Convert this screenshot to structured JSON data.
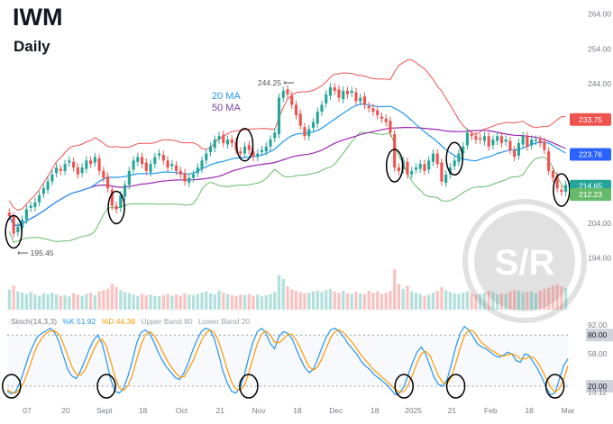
{
  "header": {
    "ticker": "IWM",
    "interval": "Daily"
  },
  "legend": {
    "ma20_label": "20 MA",
    "ma50_label": "50 MA"
  },
  "stoch_header": {
    "name": "Stoch(14,3,3)",
    "k_label": "%K 51.92",
    "d_label": "%D 44.38",
    "upper_label": "Upper Band 80",
    "lower_label": "Lower Band 20"
  },
  "watermark": {
    "text": "S/R"
  },
  "colors": {
    "up": "#26a69a",
    "down": "#ef5350",
    "ma20": "#2196f3",
    "ma50": "#9c27b0",
    "upper_band": "#ef5350",
    "lower_band": "#66bb6a",
    "k": "#2196f3",
    "d": "#ff9800"
  },
  "chart_data": [
    {
      "type": "candlestick",
      "title": "IWM",
      "subtitle": "Daily",
      "price_ticks": [
        264.0,
        254.0,
        244.0,
        234.0,
        224.0,
        214.0,
        204.0,
        194.0
      ],
      "ylim": [
        189,
        266
      ],
      "x_ticks": [
        "07",
        "20",
        "Sept",
        "18",
        "Oct",
        "21",
        "Nov",
        "18",
        "Dec",
        "18",
        "2025",
        "21",
        "Feb",
        "18",
        "Mar"
      ],
      "annotations": [
        {
          "text": "244.25",
          "value": 244.25
        },
        {
          "text": "195.45",
          "value": 195.45
        }
      ],
      "price_badges": [
        {
          "label": "233.75",
          "color": "#ef5350"
        },
        {
          "label": "223.76",
          "color": "#2962ff"
        },
        {
          "label": "214.65",
          "color": "#26a69a"
        },
        {
          "label": "212.23",
          "color": "#66bb6a"
        }
      ],
      "close": [
        206,
        201,
        203,
        205,
        208,
        209,
        210,
        212,
        214,
        216,
        218,
        220,
        219,
        221,
        222,
        220,
        218,
        220,
        222,
        221,
        223,
        219,
        217,
        214,
        209,
        208,
        212,
        215,
        219,
        222,
        223,
        221,
        219,
        221,
        223,
        224,
        222,
        220,
        221,
        219,
        218,
        216,
        217,
        218,
        220,
        222,
        224,
        226,
        228,
        229,
        227,
        228,
        227,
        225,
        224,
        226,
        225,
        223,
        224,
        225,
        226,
        228,
        230,
        240,
        242,
        241,
        238,
        235,
        232,
        229,
        231,
        233,
        236,
        238,
        241,
        243,
        242,
        240,
        242,
        241,
        242,
        239,
        240,
        238,
        237,
        236,
        235,
        234,
        233,
        230,
        220,
        219,
        222,
        218,
        219,
        220,
        221,
        219,
        222,
        224,
        221,
        216,
        218,
        220,
        222,
        224,
        226,
        230,
        229,
        228,
        228,
        229,
        226,
        228,
        229,
        227,
        228,
        225,
        223,
        227,
        229,
        226,
        228,
        228,
        227,
        225,
        219,
        217,
        214,
        213,
        215
      ],
      "indicators": {
        "ma20_last": 223.76,
        "upper_band_last": 233.75,
        "lower_band_last": 212.23,
        "last_close": 214.65
      },
      "volume_relative": [
        0.32,
        0.38,
        0.29,
        0.27,
        0.25,
        0.28,
        0.24,
        0.22,
        0.26,
        0.25,
        0.27,
        0.24,
        0.22,
        0.23,
        0.21,
        0.26,
        0.24,
        0.22,
        0.25,
        0.27,
        0.23,
        0.29,
        0.31,
        0.33,
        0.41,
        0.36,
        0.31,
        0.28,
        0.26,
        0.24,
        0.22,
        0.25,
        0.23,
        0.24,
        0.22,
        0.21,
        0.23,
        0.25,
        0.22,
        0.24,
        0.22,
        0.26,
        0.24,
        0.23,
        0.25,
        0.27,
        0.29,
        0.26,
        0.24,
        0.3,
        0.27,
        0.25,
        0.23,
        0.22,
        0.24,
        0.23,
        0.25,
        0.22,
        0.24,
        0.21,
        0.23,
        0.25,
        0.28,
        0.55,
        0.49,
        0.37,
        0.32,
        0.3,
        0.28,
        0.26,
        0.27,
        0.29,
        0.3,
        0.28,
        0.31,
        0.33,
        0.29,
        0.27,
        0.3,
        0.26,
        0.25,
        0.28,
        0.26,
        0.25,
        0.3,
        0.27,
        0.29,
        0.25,
        0.27,
        0.3,
        0.64,
        0.41,
        0.33,
        0.38,
        0.29,
        0.27,
        0.25,
        0.22,
        0.24,
        0.27,
        0.3,
        0.36,
        0.31,
        0.28,
        0.26,
        0.25,
        0.27,
        0.29,
        0.26,
        0.24,
        0.25,
        0.27,
        0.3,
        0.28,
        0.24,
        0.26,
        0.25,
        0.29,
        0.31,
        0.3,
        0.27,
        0.28,
        0.29,
        0.26,
        0.3,
        0.33,
        0.35,
        0.38,
        0.4,
        0.37,
        0.34
      ]
    },
    {
      "type": "line",
      "title": "Stoch(14,3,3)",
      "ylim": [
        0,
        95
      ],
      "y_ticks": [
        {
          "label": "92.00",
          "value": 92
        },
        {
          "label": "80.00",
          "value": 80
        },
        {
          "label": "58.00",
          "value": 58
        },
        {
          "label": "20.00",
          "value": 20
        },
        {
          "label": "13.12",
          "value": 13.12
        }
      ],
      "series": [
        {
          "name": "%K",
          "last": 51.92,
          "values": [
            14,
            11,
            14,
            25,
            40,
            56,
            68,
            78,
            82,
            85,
            88,
            83,
            72,
            56,
            40,
            32,
            29,
            38,
            50,
            63,
            74,
            80,
            70,
            50,
            28,
            14,
            12,
            18,
            32,
            50,
            70,
            83,
            86,
            82,
            72,
            60,
            50,
            42,
            36,
            30,
            28,
            36,
            48,
            62,
            74,
            84,
            88,
            86,
            76,
            58,
            38,
            24,
            14,
            12,
            18,
            34,
            54,
            72,
            84,
            88,
            82,
            70,
            64,
            78,
            84,
            82,
            76,
            64,
            52,
            42,
            36,
            40,
            52,
            66,
            78,
            86,
            88,
            84,
            78,
            70,
            64,
            58,
            50,
            44,
            40,
            34,
            30,
            26,
            22,
            16,
            10,
            12,
            20,
            34,
            48,
            60,
            66,
            58,
            44,
            30,
            22,
            20,
            28,
            46,
            66,
            82,
            90,
            86,
            78,
            70,
            66,
            64,
            60,
            56,
            54,
            56,
            60,
            58,
            50,
            48,
            58,
            56,
            48,
            40,
            30,
            18,
            10,
            12,
            28,
            44,
            52
          ]
        },
        {
          "name": "%D",
          "last": 44.38,
          "values": [
            16,
            13,
            12,
            17,
            26,
            40,
            55,
            68,
            76,
            82,
            85,
            85,
            81,
            70,
            56,
            43,
            34,
            33,
            39,
            50,
            62,
            72,
            75,
            67,
            49,
            31,
            18,
            15,
            21,
            33,
            51,
            68,
            80,
            84,
            80,
            71,
            61,
            51,
            43,
            36,
            31,
            31,
            40,
            49,
            61,
            73,
            82,
            86,
            83,
            73,
            57,
            40,
            25,
            17,
            15,
            21,
            35,
            53,
            70,
            81,
            85,
            80,
            72,
            71,
            75,
            81,
            81,
            74,
            64,
            53,
            43,
            39,
            43,
            53,
            65,
            77,
            84,
            86,
            83,
            77,
            71,
            64,
            57,
            51,
            45,
            39,
            35,
            30,
            26,
            21,
            16,
            13,
            14,
            22,
            34,
            47,
            58,
            61,
            56,
            44,
            32,
            24,
            23,
            31,
            47,
            65,
            79,
            86,
            85,
            78,
            71,
            67,
            63,
            60,
            57,
            55,
            57,
            58,
            56,
            52,
            52,
            54,
            54,
            48,
            39,
            29,
            19,
            13,
            17,
            28,
            44
          ]
        }
      ]
    }
  ]
}
